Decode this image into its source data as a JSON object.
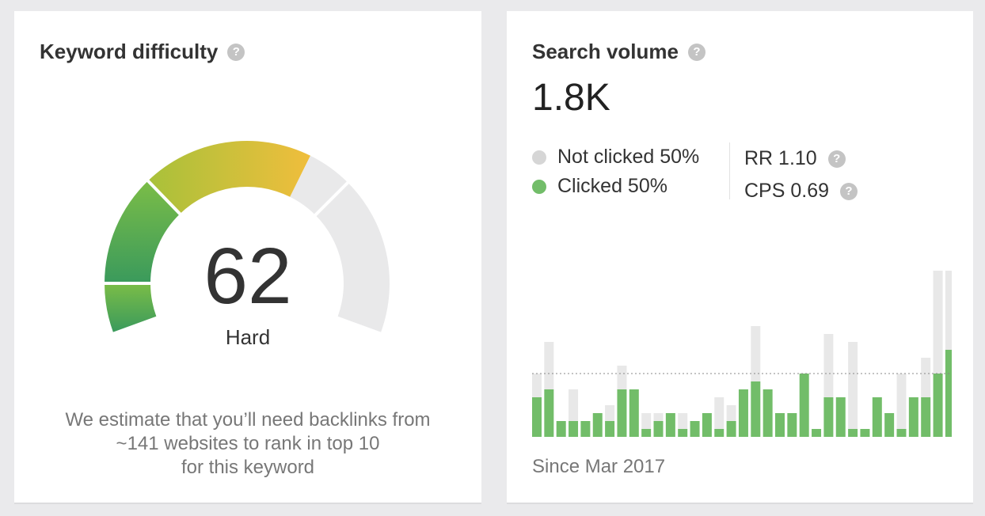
{
  "keyword_difficulty": {
    "title": "Keyword difficulty",
    "help_icon": "question-circle-icon",
    "score": 62,
    "score_text": "62",
    "level": "Hard",
    "estimate_lines": [
      "We estimate that you’ll need backlinks from",
      "~141 websites to rank in top 10",
      "for this keyword"
    ]
  },
  "search_volume": {
    "title": "Search volume",
    "help_icon": "question-circle-icon",
    "volume": "1.8K",
    "legend": [
      {
        "label": "Not clicked 50%",
        "color": "#d6d6d6"
      },
      {
        "label": "Clicked 50%",
        "color": "#72bd69"
      }
    ],
    "rr": "RR 1.10",
    "cps": "CPS 0.69",
    "since": "Since Mar 2017"
  },
  "chart_data": {
    "type": "bar",
    "stacked": true,
    "series": [
      {
        "name": "Clicked",
        "color": "#72bd69",
        "values": [
          50,
          60,
          20,
          20,
          20,
          30,
          20,
          60,
          60,
          10,
          20,
          30,
          10,
          20,
          30,
          10,
          20,
          60,
          70,
          60,
          30,
          30,
          80,
          10,
          50,
          50,
          10,
          10,
          50,
          30,
          10,
          50,
          50,
          80,
          110,
          70,
          50
        ]
      },
      {
        "name": "Not clicked",
        "color": "#e8e8e8",
        "values": [
          30,
          60,
          0,
          40,
          0,
          0,
          20,
          30,
          0,
          20,
          10,
          0,
          20,
          0,
          0,
          40,
          20,
          0,
          70,
          0,
          0,
          0,
          0,
          0,
          80,
          0,
          110,
          0,
          0,
          0,
          70,
          0,
          50,
          130,
          100,
          0,
          50
        ]
      }
    ],
    "reference_line": 80
  }
}
